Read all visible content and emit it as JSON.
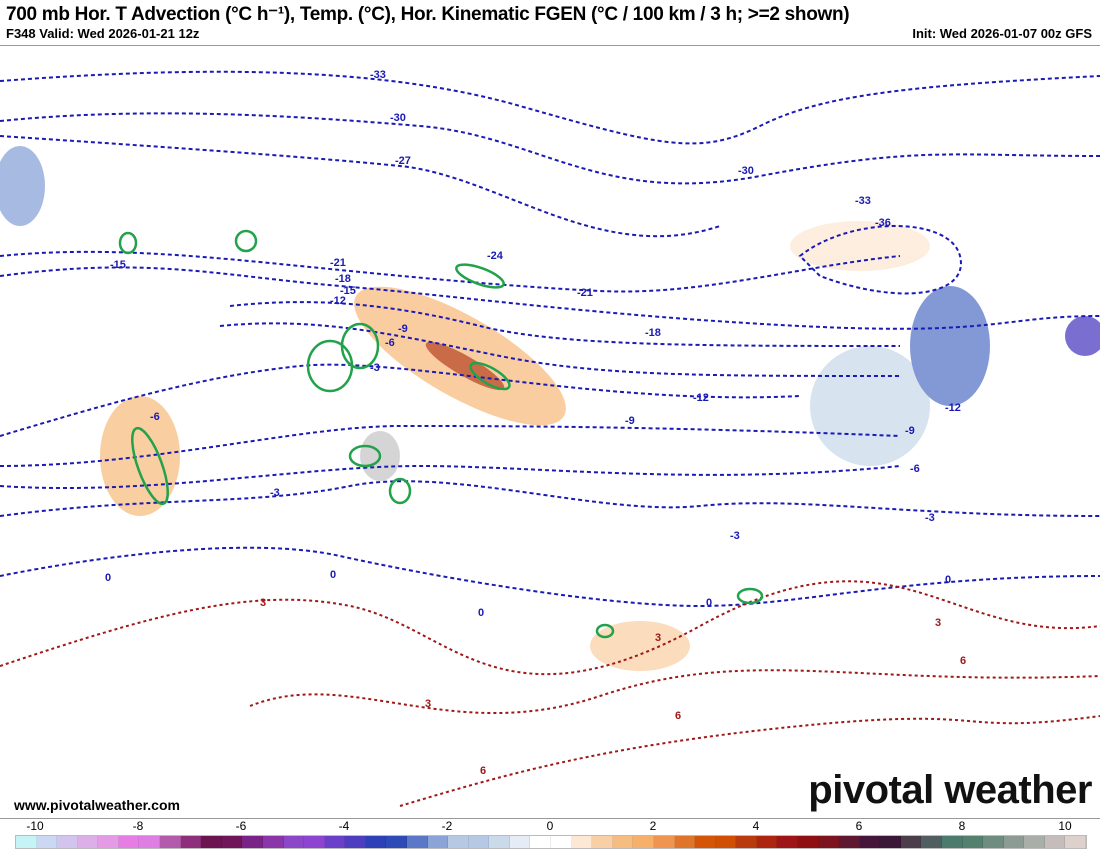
{
  "header": {
    "title": "700 mb Hor. T Advection (°C h⁻¹), Temp. (°C), Hor. Kinematic FGEN (°C / 100 km / 3 h; >=2 shown)",
    "valid": "F348 Valid: Wed 2026-01-21 12z",
    "init": "Init: Wed 2026-01-07 00z GFS"
  },
  "footer": {
    "website": "www.pivotalweather.com",
    "logo": "pivotal weather"
  },
  "colorbar": {
    "ticks": [
      "-10",
      "-8",
      "-6",
      "-4",
      "-2",
      "0",
      "2",
      "4",
      "6",
      "8",
      "10"
    ],
    "colors": [
      "#c6f3f6",
      "#cbd7f3",
      "#d2c4ee",
      "#dcafe9",
      "#e59ae6",
      "#e57de4",
      "#de7ee3",
      "#b45aac",
      "#8e2f7c",
      "#6c1450",
      "#70155a",
      "#7a2386",
      "#8a35a8",
      "#8c47c9",
      "#8d44d0",
      "#6a3fc9",
      "#4d3ec0",
      "#2e40b8",
      "#2e4ab7",
      "#5a78c7",
      "#8aa4d8",
      "#b5c9e4",
      "#b5c9e4",
      "#cbdaeb",
      "#e5ecf5",
      "#ffffff",
      "#ffffff",
      "#fde8d5",
      "#f9d0a5",
      "#f7bd80",
      "#f7b06b",
      "#ef9550",
      "#e0742b",
      "#d45508",
      "#d14f05",
      "#b93a0c",
      "#ad2510",
      "#9f1416",
      "#900f12",
      "#7c1420",
      "#5e1930",
      "#46163a",
      "#3b1737",
      "#4a3e4a",
      "#505e5f",
      "#4c7a6d",
      "#54806f",
      "#6e8d80",
      "#8c9c94",
      "#a9aea9",
      "#c4bdbb",
      "#ddd0cd"
    ]
  },
  "map": {
    "temp_contours_neg_color": "#1a1ab4",
    "temp_contours_pos_color": "#a01818",
    "fgen_color": "#22a24a",
    "contour_labels": [
      {
        "t": "-33",
        "c": "neg"
      },
      {
        "t": "-30",
        "c": "neg"
      },
      {
        "t": "-27",
        "c": "neg"
      },
      {
        "t": "-30",
        "c": "neg"
      },
      {
        "t": "-33",
        "c": "neg"
      },
      {
        "t": "-36",
        "c": "neg"
      },
      {
        "t": "-24",
        "c": "neg"
      },
      {
        "t": "-21",
        "c": "neg"
      },
      {
        "t": "-21",
        "c": "neg"
      },
      {
        "t": "-18",
        "c": "neg"
      },
      {
        "t": "-18",
        "c": "neg"
      },
      {
        "t": "-15",
        "c": "neg"
      },
      {
        "t": "-15",
        "c": "neg"
      },
      {
        "t": "-12",
        "c": "neg"
      },
      {
        "t": "-12",
        "c": "neg"
      },
      {
        "t": "-12",
        "c": "neg"
      },
      {
        "t": "-9",
        "c": "neg"
      },
      {
        "t": "-9",
        "c": "neg"
      },
      {
        "t": "-9",
        "c": "neg"
      },
      {
        "t": "-6",
        "c": "neg"
      },
      {
        "t": "-6",
        "c": "neg"
      },
      {
        "t": "-6",
        "c": "neg"
      },
      {
        "t": "-3",
        "c": "neg"
      },
      {
        "t": "-3",
        "c": "neg"
      },
      {
        "t": "-3",
        "c": "neg"
      },
      {
        "t": "-3",
        "c": "neg"
      },
      {
        "t": "0",
        "c": "neg"
      },
      {
        "t": "0",
        "c": "neg"
      },
      {
        "t": "0",
        "c": "neg"
      },
      {
        "t": "0",
        "c": "neg"
      },
      {
        "t": "0",
        "c": "neg"
      },
      {
        "t": "3",
        "c": "pos"
      },
      {
        "t": "3",
        "c": "pos"
      },
      {
        "t": "3",
        "c": "pos"
      },
      {
        "t": "3",
        "c": "pos"
      },
      {
        "t": "6",
        "c": "pos"
      },
      {
        "t": "6",
        "c": "pos"
      },
      {
        "t": "6",
        "c": "pos"
      }
    ]
  }
}
